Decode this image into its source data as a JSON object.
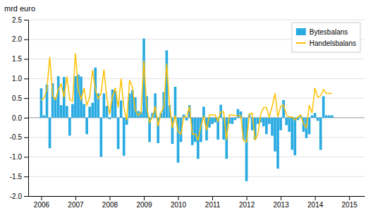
{
  "chart_data": {
    "type": "bar",
    "ylabel": "mrd euro",
    "x": [
      2006.0,
      2006.083333,
      2006.166667,
      2006.25,
      2006.333333,
      2006.416667,
      2006.5,
      2006.583333,
      2006.666667,
      2006.75,
      2006.833333,
      2006.916667,
      2007.0,
      2007.083333,
      2007.166667,
      2007.25,
      2007.333333,
      2007.416667,
      2007.5,
      2007.583333,
      2007.666667,
      2007.75,
      2007.833333,
      2007.916667,
      2008.0,
      2008.083333,
      2008.166667,
      2008.25,
      2008.333333,
      2008.416667,
      2008.5,
      2008.583333,
      2008.666667,
      2008.75,
      2008.833333,
      2008.916667,
      2009.0,
      2009.083333,
      2009.166667,
      2009.25,
      2009.333333,
      2009.416667,
      2009.5,
      2009.583333,
      2009.666667,
      2009.75,
      2009.833333,
      2009.916667,
      2010.0,
      2010.083333,
      2010.166667,
      2010.25,
      2010.333333,
      2010.416667,
      2010.5,
      2010.583333,
      2010.666667,
      2010.75,
      2010.833333,
      2010.916667,
      2011.0,
      2011.083333,
      2011.166667,
      2011.25,
      2011.333333,
      2011.416667,
      2011.5,
      2011.583333,
      2011.666667,
      2011.75,
      2011.833333,
      2011.916667,
      2012.0,
      2012.083333,
      2012.166667,
      2012.25,
      2012.333333,
      2012.416667,
      2012.5,
      2012.583333,
      2012.666667,
      2012.75,
      2012.833333,
      2012.916667,
      2013.0,
      2013.083333,
      2013.166667,
      2013.25,
      2013.333333,
      2013.416667,
      2013.5,
      2013.583333,
      2013.666667,
      2013.75,
      2013.833333,
      2013.916667,
      2014.0,
      2014.083333,
      2014.166667,
      2014.25,
      2014.333333,
      2014.416667,
      2014.5
    ],
    "series": [
      {
        "name": "Bytesbalans",
        "type": "bar",
        "color": "#29ABE2",
        "values": [
          0.75,
          0.06,
          0.85,
          -0.78,
          0.88,
          0.52,
          1.06,
          0.32,
          1.04,
          0.3,
          -0.46,
          0.35,
          1.06,
          1.1,
          1.05,
          0.35,
          -0.42,
          0.28,
          0.38,
          1.28,
          0.62,
          -1.0,
          0.62,
          0.3,
          -0.04,
          0.72,
          0.68,
          -0.8,
          0.44,
          -0.97,
          -0.18,
          0.62,
          0.7,
          0.52,
          0.17,
          0.15,
          2.02,
          0.55,
          -0.62,
          0.12,
          0.62,
          -0.65,
          0.12,
          0.65,
          1.72,
          0.32,
          -0.67,
          0.79,
          -1.15,
          -0.62,
          0.08,
          -0.07,
          0.32,
          -0.7,
          -0.62,
          -1.05,
          -0.62,
          0.28,
          -0.58,
          -0.25,
          -0.16,
          -0.12,
          -0.56,
          0.33,
          -0.56,
          -1.05,
          -0.15,
          -0.16,
          -0.06,
          0.22,
          0.16,
          -0.56,
          -1.62,
          0.08,
          -0.32,
          -0.56,
          -0.16,
          -0.12,
          -0.22,
          -0.42,
          -0.16,
          -0.46,
          -0.86,
          -1.3,
          -0.32,
          0.45,
          -0.19,
          -0.36,
          -0.82,
          -0.96,
          -0.06,
          0.06,
          -0.36,
          -0.52,
          -0.42,
          0.06,
          0.12,
          -0.08,
          -0.82,
          0.55,
          0.06,
          0.06,
          0.06
        ]
      },
      {
        "name": "Handelsbalans",
        "type": "line",
        "color": "#FFC000",
        "values": [
          0.45,
          0.5,
          0.72,
          1.55,
          0.56,
          0.46,
          0.72,
          0.86,
          0.52,
          1.06,
          0.46,
          0.42,
          1.65,
          0.72,
          0.46,
          0.76,
          0.32,
          0.52,
          1.22,
          0.72,
          0.49,
          0.62,
          1.23,
          0.52,
          0.09,
          0.56,
          0.76,
          0.26,
          1.0,
          0.26,
          -0.06,
          0.96,
          0.76,
          0.19,
          0.06,
          0.12,
          1.45,
          0.29,
          -0.12,
          0.02,
          0.29,
          -0.22,
          0.14,
          0.26,
          1.38,
          0.32,
          -0.26,
          0.06,
          -0.36,
          -0.42,
          0.02,
          0.02,
          0.29,
          -0.42,
          -0.42,
          -0.56,
          -0.22,
          0.02,
          -0.32,
          0.07,
          0.07,
          0.07,
          -0.09,
          0.15,
          0.15,
          -0.56,
          0.07,
          0.07,
          0.05,
          0.05,
          0.05,
          -0.59,
          -0.62,
          0.09,
          0.12,
          -0.56,
          -0.42,
          0.09,
          0.26,
          0.26,
          0.02,
          0.29,
          0.62,
          0.02,
          0.29,
          0.32,
          0.06,
          0.02,
          0.02,
          -0.06,
          0.02,
          0.07,
          -0.16,
          -0.26,
          0.32,
          0.12,
          0.76,
          0.52,
          0.56,
          0.72,
          0.62,
          0.62,
          0.62
        ]
      }
    ],
    "xlim": [
      2005.62,
      2015.45
    ],
    "xticks": [
      2006,
      2007,
      2008,
      2009,
      2010,
      2011,
      2012,
      2013,
      2014,
      2015
    ],
    "ylim": [
      -2.0,
      2.5
    ],
    "yticks": [
      {
        "value": -2.0,
        "label": "-2.0"
      },
      -1.5,
      {
        "value": -1.0,
        "label": "-1.0"
      },
      -0.5,
      {
        "value": 0.0,
        "label": "0.0"
      },
      0.5,
      {
        "value": 1.0,
        "label": "1.0"
      },
      1.5,
      {
        "value": 2.0,
        "label": "2.0"
      },
      2.5
    ],
    "grid": true,
    "legend": "upper right"
  }
}
